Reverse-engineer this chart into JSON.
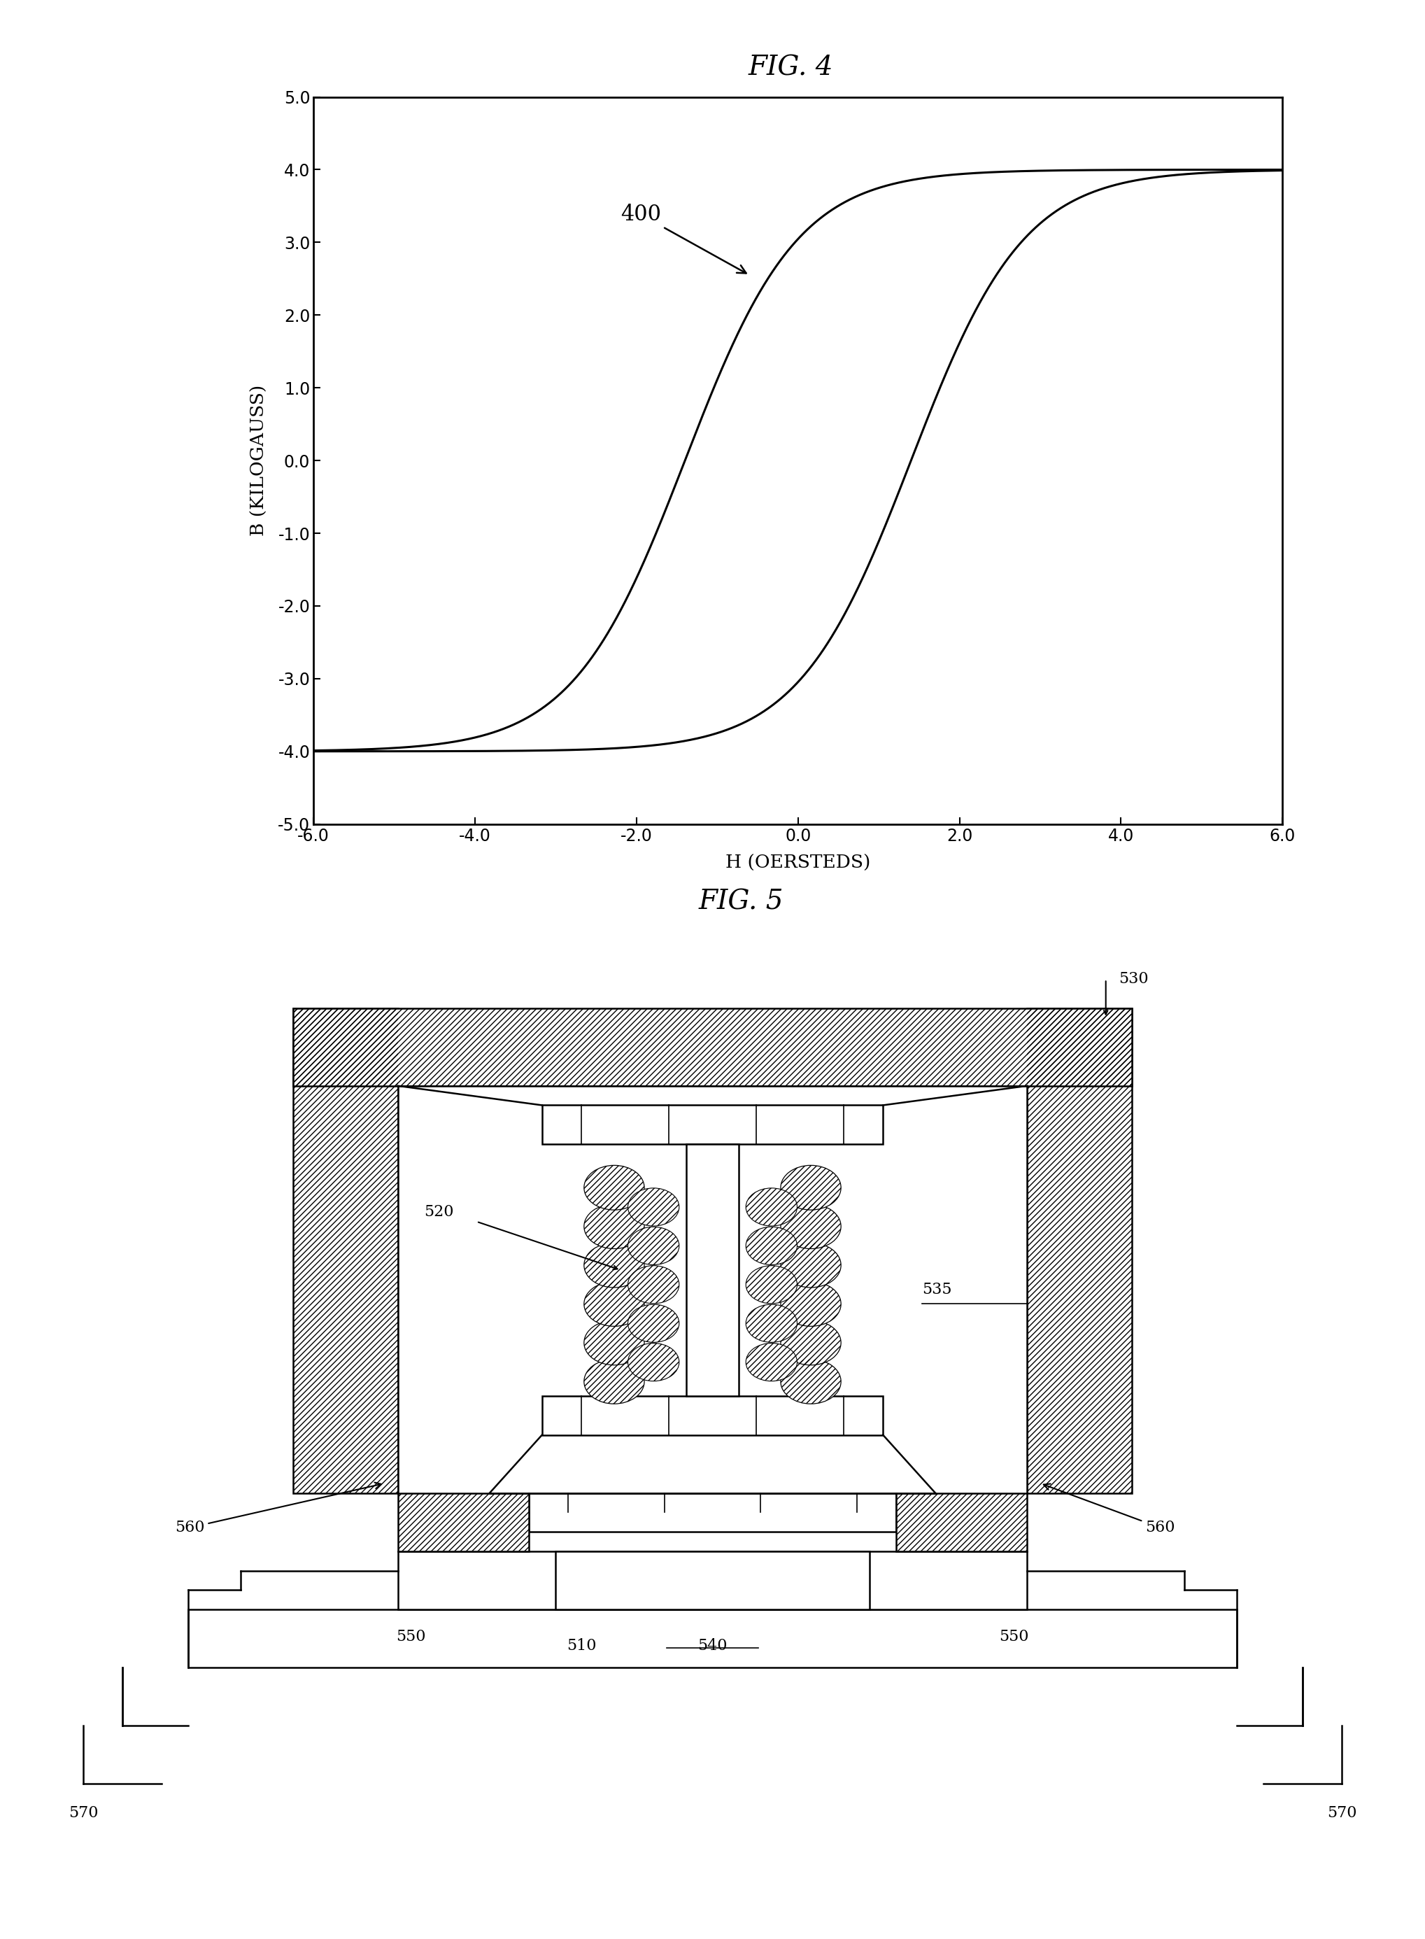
{
  "fig4_title": "FIG. 4",
  "fig5_title": "FIG. 5",
  "xlabel": "H (OERSTEDS)",
  "ylabel": "B (KILOGAUSS)",
  "xlim": [
    -6.0,
    6.0
  ],
  "ylim": [
    -5.0,
    5.0
  ],
  "xticks": [
    -6.0,
    -4.0,
    -2.0,
    0.0,
    2.0,
    4.0,
    6.0
  ],
  "yticks": [
    -5.0,
    -4.0,
    -3.0,
    -2.0,
    -1.0,
    0.0,
    1.0,
    2.0,
    3.0,
    4.0,
    5.0
  ],
  "annotation_label": "400",
  "background_color": "#ffffff",
  "line_color": "#000000",
  "label_530": "530",
  "label_520": "520",
  "label_535": "535",
  "label_560_left": "560",
  "label_560_right": "560",
  "label_550_left": "550",
  "label_550_right": "550",
  "label_510": "510",
  "label_540": "540",
  "label_570_left": "570",
  "label_570_right": "570"
}
